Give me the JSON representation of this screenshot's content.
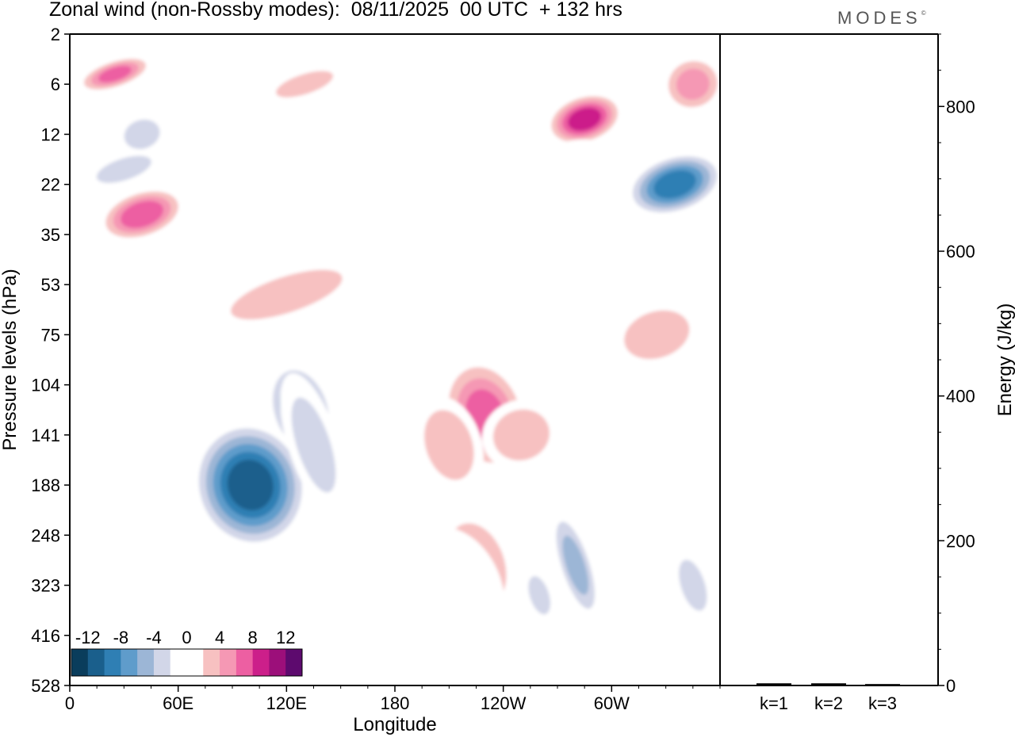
{
  "title": "Zonal wind (non-Rossby modes):  08/11/2025  00 UTC  + 132 hrs",
  "logo": "MODES",
  "chart_data": [
    {
      "type": "heatmap",
      "title": "Zonal wind (non-Rossby modes):  08/11/2025  00 UTC  + 132 hrs",
      "xlabel": "Longitude",
      "ylabel": "Pressure levels (hPa)",
      "x_ticks": [
        "0",
        "60E",
        "120E",
        "180",
        "120W",
        "60W"
      ],
      "x_range": [
        0,
        360
      ],
      "y_ticks": [
        "2",
        "6",
        "12",
        "22",
        "35",
        "53",
        "75",
        "104",
        "141",
        "188",
        "248",
        "323",
        "416",
        "528"
      ],
      "colorbar": {
        "labels": [
          "-12",
          "-8",
          "-4",
          "0",
          "4",
          "8",
          "12"
        ],
        "colors": [
          "#0a3d5c",
          "#1a5f8c",
          "#2f7fb4",
          "#5f9ccb",
          "#9cb6d6",
          "#d2d6e8",
          "#ffffff",
          "#ffffff",
          "#f7c1c1",
          "#f598b4",
          "#ed5fa2",
          "#cc1f8a",
          "#9c0f7a",
          "#5d0a6e"
        ]
      },
      "features": [
        {
          "lon": 100,
          "level": 9.0,
          "value": -13,
          "rx": 32,
          "ry": 1.3
        },
        {
          "lon": 128,
          "level": 7.5,
          "value": -8,
          "rx": 18,
          "ry": 1.0
        },
        {
          "lon": 135,
          "level": 8.2,
          "value": -4,
          "rx": 14,
          "ry": 1.5
        },
        {
          "lon": 30,
          "level": 2.7,
          "value": -5,
          "rx": 22,
          "ry": 0.3
        },
        {
          "lon": 40,
          "level": 2.0,
          "value": -5,
          "rx": 14,
          "ry": 0.4
        },
        {
          "lon": 335,
          "level": 3.0,
          "value": -11,
          "rx": 28,
          "ry": 0.6
        },
        {
          "lon": 120,
          "level": 1.4,
          "value": -3,
          "rx": 60,
          "ry": 0.3
        },
        {
          "lon": 230,
          "level": 1.6,
          "value": -3,
          "rx": 40,
          "ry": 0.3
        },
        {
          "lon": 220,
          "level": 0.4,
          "value": -3,
          "rx": 60,
          "ry": 0.3
        },
        {
          "lon": 280,
          "level": 10.6,
          "value": -6,
          "rx": 10,
          "ry": 1.2
        },
        {
          "lon": 345,
          "level": 11.0,
          "value": -4,
          "rx": 10,
          "ry": 0.8
        },
        {
          "lon": 260,
          "level": 11.2,
          "value": -4,
          "rx": 8,
          "ry": 0.6
        },
        {
          "lon": 30,
          "level": 5.2,
          "value": -3,
          "rx": 50,
          "ry": 0.4
        },
        {
          "lon": 15,
          "level": 10.0,
          "value": -3,
          "rx": 12,
          "ry": 1.0
        },
        {
          "lon": 195,
          "level": 6.0,
          "value": -3,
          "rx": 12,
          "ry": 0.3
        },
        {
          "lon": 300,
          "level": 9.3,
          "value": -3,
          "rx": 15,
          "ry": 0.6
        },
        {
          "lon": 25,
          "level": 0.8,
          "value": 8,
          "rx": 22,
          "ry": 0.3
        },
        {
          "lon": 40,
          "level": 3.6,
          "value": 9,
          "rx": 25,
          "ry": 0.5
        },
        {
          "lon": 285,
          "level": 1.7,
          "value": 11,
          "rx": 22,
          "ry": 0.5
        },
        {
          "lon": 345,
          "level": 1.0,
          "value": 6,
          "rx": 18,
          "ry": 0.6
        },
        {
          "lon": 120,
          "level": 5.2,
          "value": 5,
          "rx": 45,
          "ry": 0.5
        },
        {
          "lon": 230,
          "level": 7.6,
          "value": 8,
          "rx": 24,
          "ry": 1.2
        },
        {
          "lon": 210,
          "level": 8.2,
          "value": 5,
          "rx": 18,
          "ry": 1.0
        },
        {
          "lon": 250,
          "level": 8.0,
          "value": 5,
          "rx": 22,
          "ry": 0.7
        },
        {
          "lon": 225,
          "level": 10.6,
          "value": 5,
          "rx": 22,
          "ry": 1.2
        },
        {
          "lon": 210,
          "level": 11.2,
          "value": 3,
          "rx": 30,
          "ry": 1.4
        },
        {
          "lon": 250,
          "level": 12.4,
          "value": 3,
          "rx": 12,
          "ry": 0.9
        },
        {
          "lon": 325,
          "level": 6.0,
          "value": 4,
          "rx": 28,
          "ry": 0.7
        },
        {
          "lon": 130,
          "level": 1.0,
          "value": 4,
          "rx": 25,
          "ry": 0.3
        },
        {
          "lon": 15,
          "level": 7.8,
          "value": 3,
          "rx": 16,
          "ry": 0.6
        },
        {
          "lon": 75,
          "level": 6.2,
          "value": 3,
          "rx": 28,
          "ry": 0.4
        },
        {
          "lon": 270,
          "level": 2.5,
          "value": 3,
          "rx": 25,
          "ry": 0.3
        }
      ]
    },
    {
      "type": "bar",
      "ylabel": "Energy (J/kg)",
      "categories": [
        "k=1",
        "k=2",
        "k=3"
      ],
      "values": [
        3,
        3,
        2
      ],
      "ylim": [
        0,
        900
      ],
      "y_ticks": [
        "0",
        "200",
        "400",
        "600",
        "800"
      ]
    }
  ]
}
